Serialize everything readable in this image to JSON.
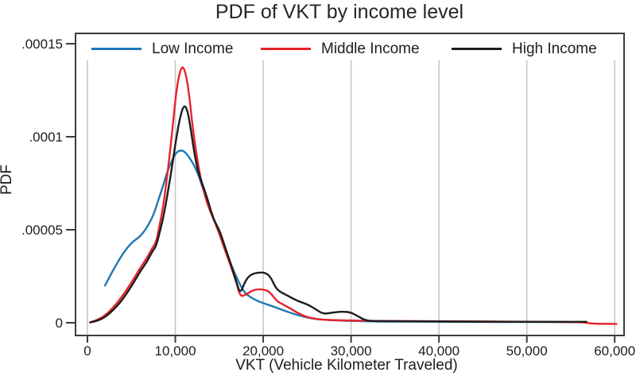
{
  "chart_data": {
    "type": "line",
    "title": "PDF of VKT by income level",
    "xlabel": "VKT (Vehicle Kilometer Traveled)",
    "ylabel": "PDF",
    "xlim": [
      0,
      60000
    ],
    "ylim": [
      0,
      0.00015
    ],
    "grid": "vertical-gridlines-only",
    "legend_position": "top-inside-horizontal",
    "x_ticks": [
      {
        "value": 0,
        "label": "0"
      },
      {
        "value": 10000,
        "label": "10,000"
      },
      {
        "value": 20000,
        "label": "20,000"
      },
      {
        "value": 30000,
        "label": "30,000"
      },
      {
        "value": 40000,
        "label": "40,000"
      },
      {
        "value": 50000,
        "label": "50,000"
      },
      {
        "value": 60000,
        "label": "60,000"
      }
    ],
    "y_ticks": [
      {
        "value": 0,
        "label": "0"
      },
      {
        "value": 5e-05,
        "label": ".00005"
      },
      {
        "value": 0.0001,
        "label": ".0001"
      },
      {
        "value": 0.00015,
        "label": ".00015"
      }
    ],
    "series": [
      {
        "name": "Low Income",
        "color": "#1f78b4",
        "points": [
          [
            2000,
            2e-05
          ],
          [
            2500,
            2.45e-05
          ],
          [
            3000,
            2.9e-05
          ],
          [
            4000,
            3.7e-05
          ],
          [
            5000,
            4.3e-05
          ],
          [
            5600,
            4.5e-05
          ],
          [
            6200,
            4.75e-05
          ],
          [
            7000,
            5.3e-05
          ],
          [
            7600,
            5.9e-05
          ],
          [
            8000,
            6.5e-05
          ],
          [
            8500,
            7.2e-05
          ],
          [
            9000,
            8e-05
          ],
          [
            9500,
            8.6e-05
          ],
          [
            10000,
            9.1e-05
          ],
          [
            10600,
            9.3e-05
          ],
          [
            11200,
            9.15e-05
          ],
          [
            12000,
            8.6e-05
          ],
          [
            12600,
            8e-05
          ],
          [
            13000,
            7.4e-05
          ],
          [
            14000,
            6.05e-05
          ],
          [
            15000,
            4.8e-05
          ],
          [
            16000,
            3.5e-05
          ],
          [
            17000,
            2.4e-05
          ],
          [
            17600,
            1.85e-05
          ],
          [
            18000,
            1.55e-05
          ],
          [
            19000,
            1.25e-05
          ],
          [
            20000,
            1.05e-05
          ],
          [
            21000,
            9e-06
          ],
          [
            22000,
            7.2e-06
          ],
          [
            23000,
            5.5e-06
          ],
          [
            24000,
            4e-06
          ],
          [
            25000,
            2.8e-06
          ],
          [
            26000,
            2e-06
          ],
          [
            27000,
            1.6e-06
          ],
          [
            28000,
            1.3e-06
          ],
          [
            30000,
            1e-06
          ],
          [
            33000,
            7e-07
          ],
          [
            36000,
            6e-07
          ],
          [
            40000,
            5e-07
          ],
          [
            45000,
            4.5e-07
          ],
          [
            50000,
            4e-07
          ],
          [
            53000,
            3.5e-07
          ],
          [
            56800,
            3e-07
          ]
        ]
      },
      {
        "name": "Middle Income",
        "color": "#e8232a",
        "points": [
          [
            300,
            2e-07
          ],
          [
            1000,
            1.2e-06
          ],
          [
            2000,
            3.8e-06
          ],
          [
            3000,
            8.5e-06
          ],
          [
            4000,
            1.45e-05
          ],
          [
            5000,
            2.15e-05
          ],
          [
            6000,
            2.95e-05
          ],
          [
            6800,
            3.5e-05
          ],
          [
            7400,
            4.05e-05
          ],
          [
            7800,
            4.3e-05
          ],
          [
            8200,
            5.2e-05
          ],
          [
            8600,
            6.2e-05
          ],
          [
            9000,
            7.6e-05
          ],
          [
            9500,
            9.6e-05
          ],
          [
            10000,
            0.00012
          ],
          [
            10400,
            0.000133
          ],
          [
            10800,
            0.0001385
          ],
          [
            11200,
            0.000134
          ],
          [
            11600,
            0.000122
          ],
          [
            12000,
            0.000104
          ],
          [
            12500,
            8.75e-05
          ],
          [
            13000,
            7.5e-05
          ],
          [
            13500,
            6.6e-05
          ],
          [
            14000,
            5.95e-05
          ],
          [
            14500,
            5.4e-05
          ],
          [
            15000,
            4.8e-05
          ],
          [
            15500,
            4.1e-05
          ],
          [
            16000,
            3.45e-05
          ],
          [
            16500,
            2.8e-05
          ],
          [
            17000,
            2.1e-05
          ],
          [
            17400,
            1.4e-05
          ],
          [
            18000,
            1.5e-05
          ],
          [
            18600,
            1.7e-05
          ],
          [
            19200,
            1.8e-05
          ],
          [
            20000,
            1.8e-05
          ],
          [
            20600,
            1.7e-05
          ],
          [
            21000,
            1.5e-05
          ],
          [
            21600,
            1.15e-05
          ],
          [
            22000,
            1.05e-05
          ],
          [
            23000,
            8e-06
          ],
          [
            24000,
            5e-06
          ],
          [
            25000,
            3e-06
          ],
          [
            26000,
            2e-06
          ],
          [
            27000,
            1.6e-06
          ],
          [
            28000,
            1.4e-06
          ],
          [
            30000,
            1.2e-06
          ],
          [
            33000,
            1e-06
          ],
          [
            36000,
            9e-07
          ],
          [
            40000,
            8e-07
          ],
          [
            44000,
            7e-07
          ],
          [
            48000,
            6e-07
          ],
          [
            52000,
            5e-07
          ],
          [
            55000,
            4e-07
          ],
          [
            56500,
            2e-07
          ],
          [
            57500,
            -5e-07
          ],
          [
            60200,
            -6e-07
          ]
        ]
      },
      {
        "name": "High Income",
        "color": "#1d1d1d",
        "points": [
          [
            300,
            2e-07
          ],
          [
            1000,
            8e-07
          ],
          [
            2000,
            3e-06
          ],
          [
            3000,
            7e-06
          ],
          [
            4000,
            1.25e-05
          ],
          [
            5000,
            1.95e-05
          ],
          [
            6000,
            2.75e-05
          ],
          [
            6800,
            3.3e-05
          ],
          [
            7400,
            3.85e-05
          ],
          [
            7800,
            4.1e-05
          ],
          [
            8200,
            4.8e-05
          ],
          [
            8600,
            5.6e-05
          ],
          [
            9000,
            6.6e-05
          ],
          [
            9500,
            8e-05
          ],
          [
            10000,
            9.6e-05
          ],
          [
            10500,
            0.00011
          ],
          [
            11000,
            0.0001175
          ],
          [
            11400,
            0.000114
          ],
          [
            11800,
            0.000103
          ],
          [
            12200,
            9e-05
          ],
          [
            12600,
            8.1e-05
          ],
          [
            13000,
            7.55e-05
          ],
          [
            13500,
            6.9e-05
          ],
          [
            14000,
            6.1e-05
          ],
          [
            14400,
            5.5e-05
          ],
          [
            15000,
            5e-05
          ],
          [
            15500,
            4.3e-05
          ],
          [
            16000,
            3.6e-05
          ],
          [
            16500,
            2.9e-05
          ],
          [
            17000,
            2.1e-05
          ],
          [
            17400,
            1.55e-05
          ],
          [
            18000,
            2.3e-05
          ],
          [
            18600,
            2.6e-05
          ],
          [
            19400,
            2.7e-05
          ],
          [
            20200,
            2.7e-05
          ],
          [
            20800,
            2.5e-05
          ],
          [
            21400,
            1.9e-05
          ],
          [
            21800,
            1.7e-05
          ],
          [
            22400,
            1.55e-05
          ],
          [
            23000,
            1.4e-05
          ],
          [
            24000,
            1.15e-05
          ],
          [
            25000,
            1e-05
          ],
          [
            26000,
            7.2e-06
          ],
          [
            26800,
            4.8e-06
          ],
          [
            27600,
            5.2e-06
          ],
          [
            28400,
            5.8e-06
          ],
          [
            29200,
            6e-06
          ],
          [
            30000,
            5.5e-06
          ],
          [
            30800,
            3.5e-06
          ],
          [
            31400,
            1.8e-06
          ],
          [
            32000,
            1e-06
          ],
          [
            33000,
            9e-07
          ],
          [
            36000,
            8e-07
          ],
          [
            40000,
            7e-07
          ],
          [
            45000,
            6e-07
          ],
          [
            50000,
            5.5e-07
          ],
          [
            53000,
            5e-07
          ],
          [
            56800,
            5e-07
          ]
        ]
      }
    ],
    "colors": {
      "gridline": "#c7c7c7",
      "frame": "#3b3b3b",
      "tick": "#3b3b3b",
      "text": "#1d1d1d",
      "title_text": "#262626",
      "background": "#ffffff"
    }
  }
}
